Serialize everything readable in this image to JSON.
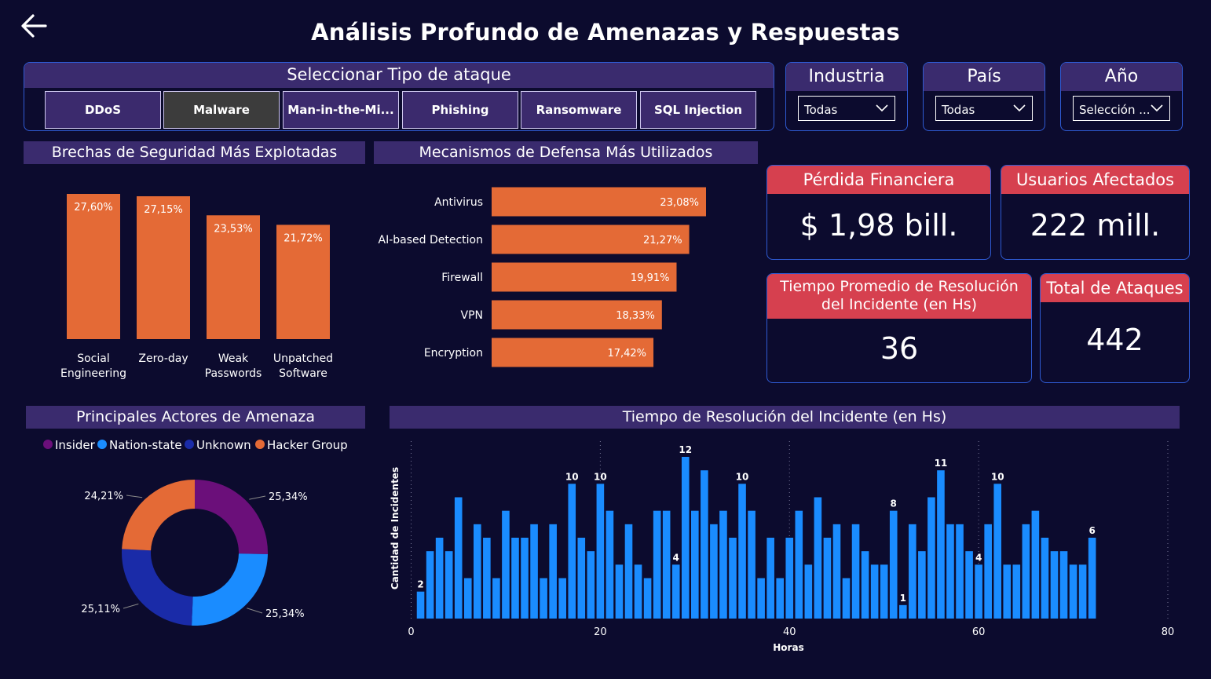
{
  "page": {
    "title": "Análisis Profundo de Amenazas y Respuestas"
  },
  "attack_slicer": {
    "title": "Seleccionar Tipo de ataque",
    "options": [
      "DDoS",
      "Malware",
      "Man-in-the-Mi...",
      "Phishing",
      "Ransomware",
      "SQL Injection"
    ],
    "selected": "Malware"
  },
  "filters": {
    "industria": {
      "label": "Industria",
      "value": "Todas"
    },
    "pais": {
      "label": "País",
      "value": "Todas"
    },
    "anio": {
      "label": "Año",
      "value": "Selección ..."
    }
  },
  "kpis": {
    "financial_loss": {
      "label": "Pérdida Financiera",
      "value": "$ 1,98 bill."
    },
    "affected_users": {
      "label": "Usuarios Afectados",
      "value": "222 mill."
    },
    "avg_resolution": {
      "label_line1": "Tiempo Promedio de Resolución",
      "label_line2": "del Incidente (en Hs)",
      "value": "36"
    },
    "total_attacks": {
      "label": "Total de Ataques",
      "value": "442"
    }
  },
  "colors": {
    "background": "#0c0b2e",
    "header": "#3a2b6e",
    "orange": "#e46a36",
    "kpi_red": "#d6404f",
    "border": "#2f5bd3",
    "blue": "#1a8cff",
    "purple": "#6b0f7a",
    "navy": "#1a2ba8"
  },
  "charts": [
    {
      "id": "breaches",
      "type": "bar",
      "title": "Brechas de Seguridad Más Explotadas",
      "categories": [
        [
          "Social",
          "Engineering"
        ],
        [
          "Zero-day"
        ],
        [
          "Weak",
          "Passwords"
        ],
        [
          "Unpatched",
          "Software"
        ]
      ],
      "values": [
        27.6,
        27.15,
        23.53,
        21.72
      ],
      "labels": [
        "27,60%",
        "27,15%",
        "23,53%",
        "21,72%"
      ],
      "color": "#e46a36"
    },
    {
      "id": "defenses",
      "type": "bar",
      "orientation": "horizontal",
      "title": "Mecanismos de Defensa Más Utilizados",
      "categories": [
        "Antivirus",
        "AI-based Detection",
        "Firewall",
        "VPN",
        "Encryption"
      ],
      "values": [
        23.08,
        21.27,
        19.91,
        18.33,
        17.42
      ],
      "labels": [
        "23,08%",
        "21,27%",
        "19,91%",
        "18,33%",
        "17,42%"
      ],
      "color": "#e46a36"
    },
    {
      "id": "actors",
      "type": "pie",
      "donut": true,
      "title": "Principales Actores de Amenaza",
      "legend": [
        "Insider",
        "Nation-state",
        "Unknown",
        "Hacker Group"
      ],
      "legend_colors": [
        "#6b0f7a",
        "#1a8cff",
        "#1a2ba8",
        "#e46a36"
      ],
      "slices": [
        {
          "name": "Insider",
          "value": 25.34,
          "label": "25,34%",
          "color": "#6b0f7a"
        },
        {
          "name": "Nation-state",
          "value": 25.34,
          "label": "25,34%",
          "color": "#1a8cff"
        },
        {
          "name": "Unknown",
          "value": 25.11,
          "label": "25,11%",
          "color": "#1a2ba8"
        },
        {
          "name": "Hacker Group",
          "value": 24.21,
          "label": "24,21%",
          "color": "#e46a36"
        }
      ]
    },
    {
      "id": "resolution",
      "type": "bar",
      "title": "Tiempo de Resolución del Incidente (en Hs)",
      "xlabel": "Horas",
      "ylabel": "Cantidad de Incidentes",
      "xlim": [
        0,
        80
      ],
      "xticks": [
        0,
        20,
        40,
        60,
        80
      ],
      "ylim": [
        0,
        13
      ],
      "x": [
        1,
        2,
        3,
        4,
        5,
        6,
        7,
        8,
        9,
        10,
        11,
        12,
        13,
        14,
        15,
        16,
        17,
        18,
        19,
        20,
        21,
        22,
        23,
        24,
        25,
        26,
        27,
        28,
        29,
        30,
        31,
        32,
        33,
        34,
        35,
        36,
        37,
        38,
        39,
        40,
        41,
        42,
        43,
        44,
        45,
        46,
        47,
        48,
        49,
        50,
        51,
        52,
        53,
        54,
        55,
        56,
        57,
        58,
        59,
        60,
        61,
        62,
        63,
        64,
        65,
        66,
        67,
        68,
        69,
        70,
        71,
        72
      ],
      "values": [
        2,
        5,
        6,
        5,
        9,
        3,
        7,
        6,
        3,
        8,
        6,
        6,
        7,
        3,
        7,
        3,
        10,
        6,
        5,
        10,
        8,
        4,
        7,
        4,
        3,
        8,
        8,
        4,
        12,
        8,
        11,
        7,
        8,
        6,
        10,
        8,
        3,
        6,
        3,
        6,
        8,
        4,
        9,
        6,
        7,
        3,
        7,
        5,
        4,
        4,
        8,
        1,
        7,
        5,
        9,
        11,
        7,
        7,
        5,
        4,
        7,
        10,
        4,
        4,
        7,
        8,
        6,
        5,
        5,
        4,
        4,
        6
      ],
      "data_labels": [
        {
          "x": 1,
          "label": "2"
        },
        {
          "x": 17,
          "label": "10"
        },
        {
          "x": 20,
          "label": "10"
        },
        {
          "x": 28,
          "label": "4"
        },
        {
          "x": 29,
          "label": "12"
        },
        {
          "x": 35,
          "label": "10"
        },
        {
          "x": 51,
          "label": "8"
        },
        {
          "x": 52,
          "label": "1"
        },
        {
          "x": 56,
          "label": "11"
        },
        {
          "x": 60,
          "label": "4"
        },
        {
          "x": 62,
          "label": "10"
        },
        {
          "x": 72,
          "label": "6"
        }
      ],
      "color": "#1a8cff"
    }
  ]
}
